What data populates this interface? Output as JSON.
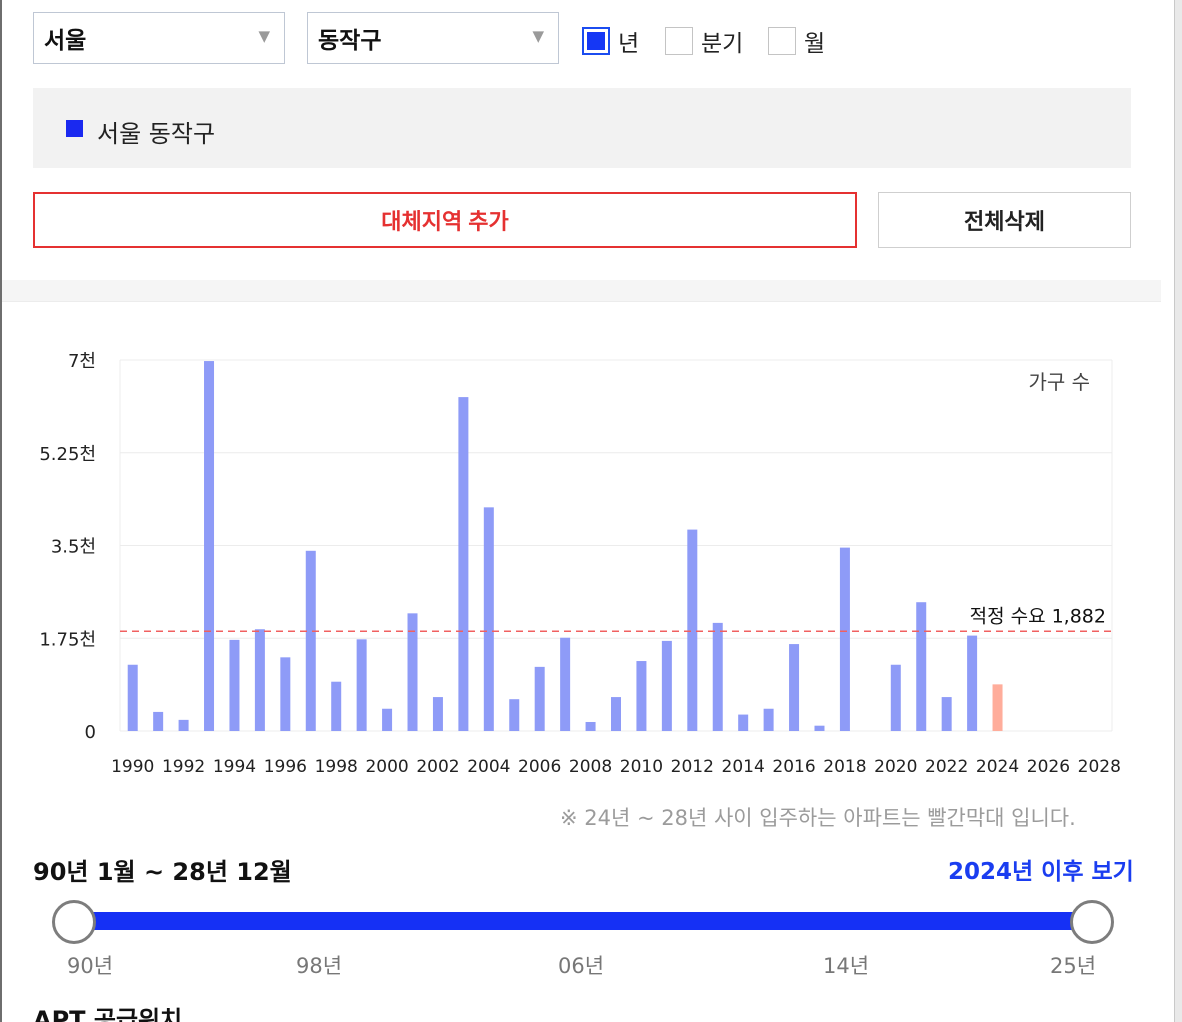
{
  "filters": {
    "city": "서울",
    "district": "동작구",
    "period_options": [
      {
        "label": "년",
        "checked": true
      },
      {
        "label": "분기",
        "checked": false
      },
      {
        "label": "월",
        "checked": false
      }
    ],
    "dropdown_icon": "triangle-down-icon"
  },
  "legend": {
    "label": "서울 동작구",
    "color": "#1a29f0"
  },
  "buttons": {
    "add_region": "대체지역 추가",
    "clear_all": "전체삭제"
  },
  "chart_data": {
    "type": "bar",
    "unit_label": "가구 수",
    "y_ticks": [
      "0",
      "1.75천",
      "3.5천",
      "5.25천",
      "7천"
    ],
    "ylim": [
      0,
      7000
    ],
    "x_tick_labels": [
      "1990",
      "1992",
      "1994",
      "1996",
      "1998",
      "2000",
      "2002",
      "2004",
      "2006",
      "2008",
      "2010",
      "2012",
      "2014",
      "2016",
      "2018",
      "2020",
      "2022",
      "2024",
      "2026",
      "2028"
    ],
    "categories": [
      1990,
      1991,
      1992,
      1993,
      1994,
      1995,
      1996,
      1997,
      1998,
      1999,
      2000,
      2001,
      2002,
      2003,
      2004,
      2005,
      2006,
      2007,
      2008,
      2009,
      2010,
      2011,
      2012,
      2013,
      2014,
      2015,
      2016,
      2017,
      2018,
      2019,
      2020,
      2021,
      2022,
      2023,
      2024,
      2025,
      2026,
      2027,
      2028
    ],
    "values": [
      1250,
      360,
      210,
      6980,
      1720,
      1920,
      1390,
      3400,
      930,
      1730,
      420,
      2220,
      640,
      6300,
      4220,
      600,
      1210,
      1760,
      170,
      640,
      1320,
      1700,
      3800,
      2040,
      310,
      420,
      1640,
      100,
      3460,
      0,
      1250,
      2430,
      640,
      1800,
      880,
      0,
      0,
      0,
      0
    ],
    "bar_color": "#8e9bf7",
    "highlight_color": "#ffad9b",
    "highlight_index": 34,
    "reference_line": {
      "value": 1882,
      "label": "적정 수요 1,882",
      "color": "#f06060"
    },
    "grid": true
  },
  "note": "※ 24년 ~ 28년 사이 입주하는 아파트는 빨간막대 입니다.",
  "range": {
    "label": "90년 1월 ~ 28년 12월",
    "after_link": "2024년 이후 보기",
    "ticks": [
      "90년",
      "98년",
      "06년",
      "14년",
      "25년"
    ],
    "start": "90년",
    "end": "25년"
  },
  "section": {
    "title": "APT 공급위치"
  }
}
